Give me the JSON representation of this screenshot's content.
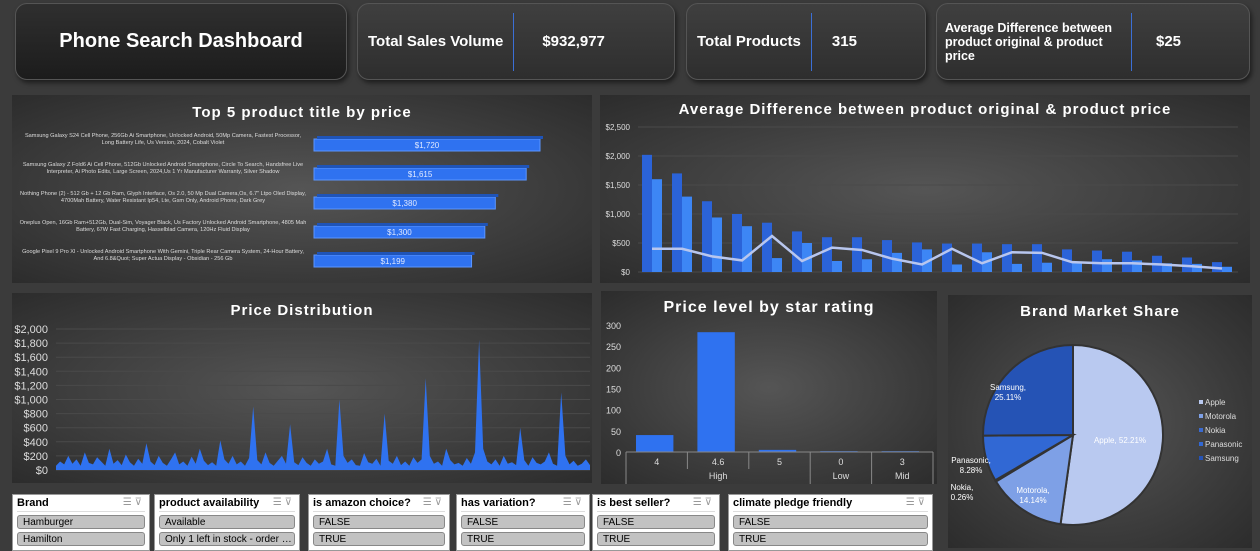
{
  "header": {
    "title": "Phone Search Dashboard",
    "kpis": [
      {
        "label": "Total Sales Volume",
        "value": "$932,977"
      },
      {
        "label": "Total Products",
        "value": "315"
      },
      {
        "label": "Average Difference between product original & product price",
        "value": "$25"
      }
    ]
  },
  "colors": {
    "accent": "#3b7be8",
    "background": "#3b3b3b"
  },
  "chart_data": [
    {
      "type": "bar",
      "title": "Top 5 product title by price",
      "orientation": "horizontal",
      "categories": [
        "Samsung Galaxy S24 Cell Phone, 256Gb Ai Smartphone, Unlocked Android, 50Mp Camera, Fastest Processor, Long Battery Life, Us Version, 2024, Cobalt Violet",
        "Samsung Galaxy Z Fold6 Ai Cell Phone, 512Gb Unlocked Android Smartphone, Circle To Search, Handsfree Live Interpreter, Ai Photo Edits, Large Screen, 2024,Us 1 Yr Manufacturer Warranty, Silver Shadow",
        "Nothing Phone (2) - 512 Gb + 12 Gb Ram, Glyph Interface, Os 2.0, 50 Mp Dual Camera,Os, 6.7\" Ltpo Oled Display, 4700Mah Battery, Water Resistant Ip54, Lte, Gsm Only, Android Phone, Dark Grey",
        "Oneplus Open, 16Gb Ram+512Gb, Dual-Sim, Voyager Black, Us Factory Unlocked Android Smartphone, 4805 Mah Battery, 67W Fast Charging, Hasselblad Camera, 120Hz Fluid Display",
        "Google Pixel 9 Pro Xl - Unlocked Android Smartphone With Gemini, Triple Rear Camera System, 24-Hour Battery, And 6.8&Quot; Super Actua Display - Obsidian - 256 Gb"
      ],
      "values": [
        1720,
        1615,
        1380,
        1300,
        1199
      ],
      "labels": [
        "$1,720",
        "$1,615",
        "$1,380",
        "$1,300",
        "$1,199"
      ]
    },
    {
      "type": "bar+line",
      "title": "Average Difference between product original & product price",
      "ylim": [
        0,
        2500
      ],
      "yticks": [
        "$0",
        "$500",
        "$1,000",
        "$1,500",
        "$2,000",
        "$2,500"
      ],
      "series": [
        {
          "values": [
            2020,
            1700,
            1220,
            1000,
            850,
            700,
            600,
            600,
            550,
            510,
            490,
            490,
            480,
            480,
            390,
            370,
            350,
            280,
            250,
            170
          ]
        },
        {
          "values": [
            1600,
            1300,
            940,
            790,
            240,
            500,
            190,
            220,
            330,
            390,
            130,
            340,
            140,
            160,
            180,
            220,
            200,
            150,
            140,
            90
          ]
        },
        {
          "values": [
            400,
            400,
            270,
            200,
            620,
            190,
            420,
            380,
            230,
            130,
            400,
            150,
            340,
            330,
            170,
            150,
            150,
            130,
            100,
            60
          ]
        }
      ]
    },
    {
      "type": "area",
      "title": "Price Distribution",
      "ylim": [
        0,
        2000
      ],
      "yticks": [
        "$0",
        "$200",
        "$400",
        "$600",
        "$800",
        "$1,000",
        "$1,200",
        "$1,400",
        "$1,600",
        "$1,800",
        "$2,000"
      ],
      "values": [
        60,
        120,
        80,
        200,
        90,
        150,
        60,
        250,
        100,
        80,
        180,
        120,
        60,
        300,
        90,
        140,
        70,
        220,
        110,
        60,
        160,
        90,
        380,
        120,
        70,
        200,
        100,
        60,
        150,
        250,
        80,
        120,
        60,
        190,
        90,
        300,
        130,
        70,
        110,
        60,
        420,
        150,
        90,
        200,
        80,
        120,
        60,
        170,
        900,
        140,
        80,
        250,
        100,
        60,
        130,
        200,
        90,
        650,
        110,
        70,
        180,
        100,
        60,
        150,
        90,
        120,
        300,
        80,
        60,
        1000,
        200,
        100,
        150,
        70,
        60,
        240,
        110,
        90,
        160,
        60,
        800,
        130,
        90,
        200,
        70,
        120,
        60,
        180,
        100,
        150,
        1300,
        200,
        90,
        120,
        60,
        300,
        140,
        80,
        100,
        60,
        170,
        90,
        250,
        1850,
        300,
        120,
        80,
        150,
        60,
        200,
        90,
        110,
        70,
        600,
        140,
        60,
        180,
        100,
        80,
        120,
        250,
        90,
        60,
        1100,
        200,
        80,
        130,
        60,
        90,
        150,
        70
      ]
    },
    {
      "type": "bar",
      "title": "Price level by star rating",
      "ylim": [
        0,
        300
      ],
      "yticks": [
        "0",
        "50",
        "100",
        "150",
        "200",
        "250",
        "300"
      ],
      "categories": [
        "4",
        "4.6",
        "5",
        "0",
        "3"
      ],
      "groups": [
        "High",
        "Low",
        "Mid"
      ],
      "values": [
        40,
        283,
        5,
        2,
        2
      ]
    },
    {
      "type": "pie",
      "title": "Brand Market Share",
      "legend": "right",
      "slices": [
        {
          "name": "Apple",
          "value": 52.21,
          "label": "Apple, 52.21%",
          "color": "#b9c9f0"
        },
        {
          "name": "Motorola",
          "value": 14.14,
          "label": "Motorola,\n14.14%",
          "color": "#7ea0e6"
        },
        {
          "name": "Nokia",
          "value": 0.26,
          "label": "Nokia,\n0.26%",
          "color": "#3a6ad0"
        },
        {
          "name": "Panasonic",
          "value": 8.28,
          "label": "Panasonic,\n8.28%",
          "color": "#3168d4"
        },
        {
          "name": "Samsung",
          "value": 25.11,
          "label": "Samsung,\n25.11%",
          "color": "#2553b5"
        }
      ]
    }
  ],
  "slicers": [
    {
      "title": "Brand",
      "items": [
        "Hamburger",
        "Hamilton"
      ]
    },
    {
      "title": "product availability",
      "items": [
        "Available",
        "Only 1 left in stock - order soon."
      ]
    },
    {
      "title": "is amazon choice?",
      "items": [
        "FALSE",
        "TRUE"
      ]
    },
    {
      "title": "has variation?",
      "items": [
        "FALSE",
        "TRUE"
      ]
    },
    {
      "title": "is best seller?",
      "items": [
        "FALSE",
        "TRUE"
      ]
    },
    {
      "title": "climate pledge friendly",
      "items": [
        "FALSE",
        "TRUE"
      ]
    }
  ]
}
